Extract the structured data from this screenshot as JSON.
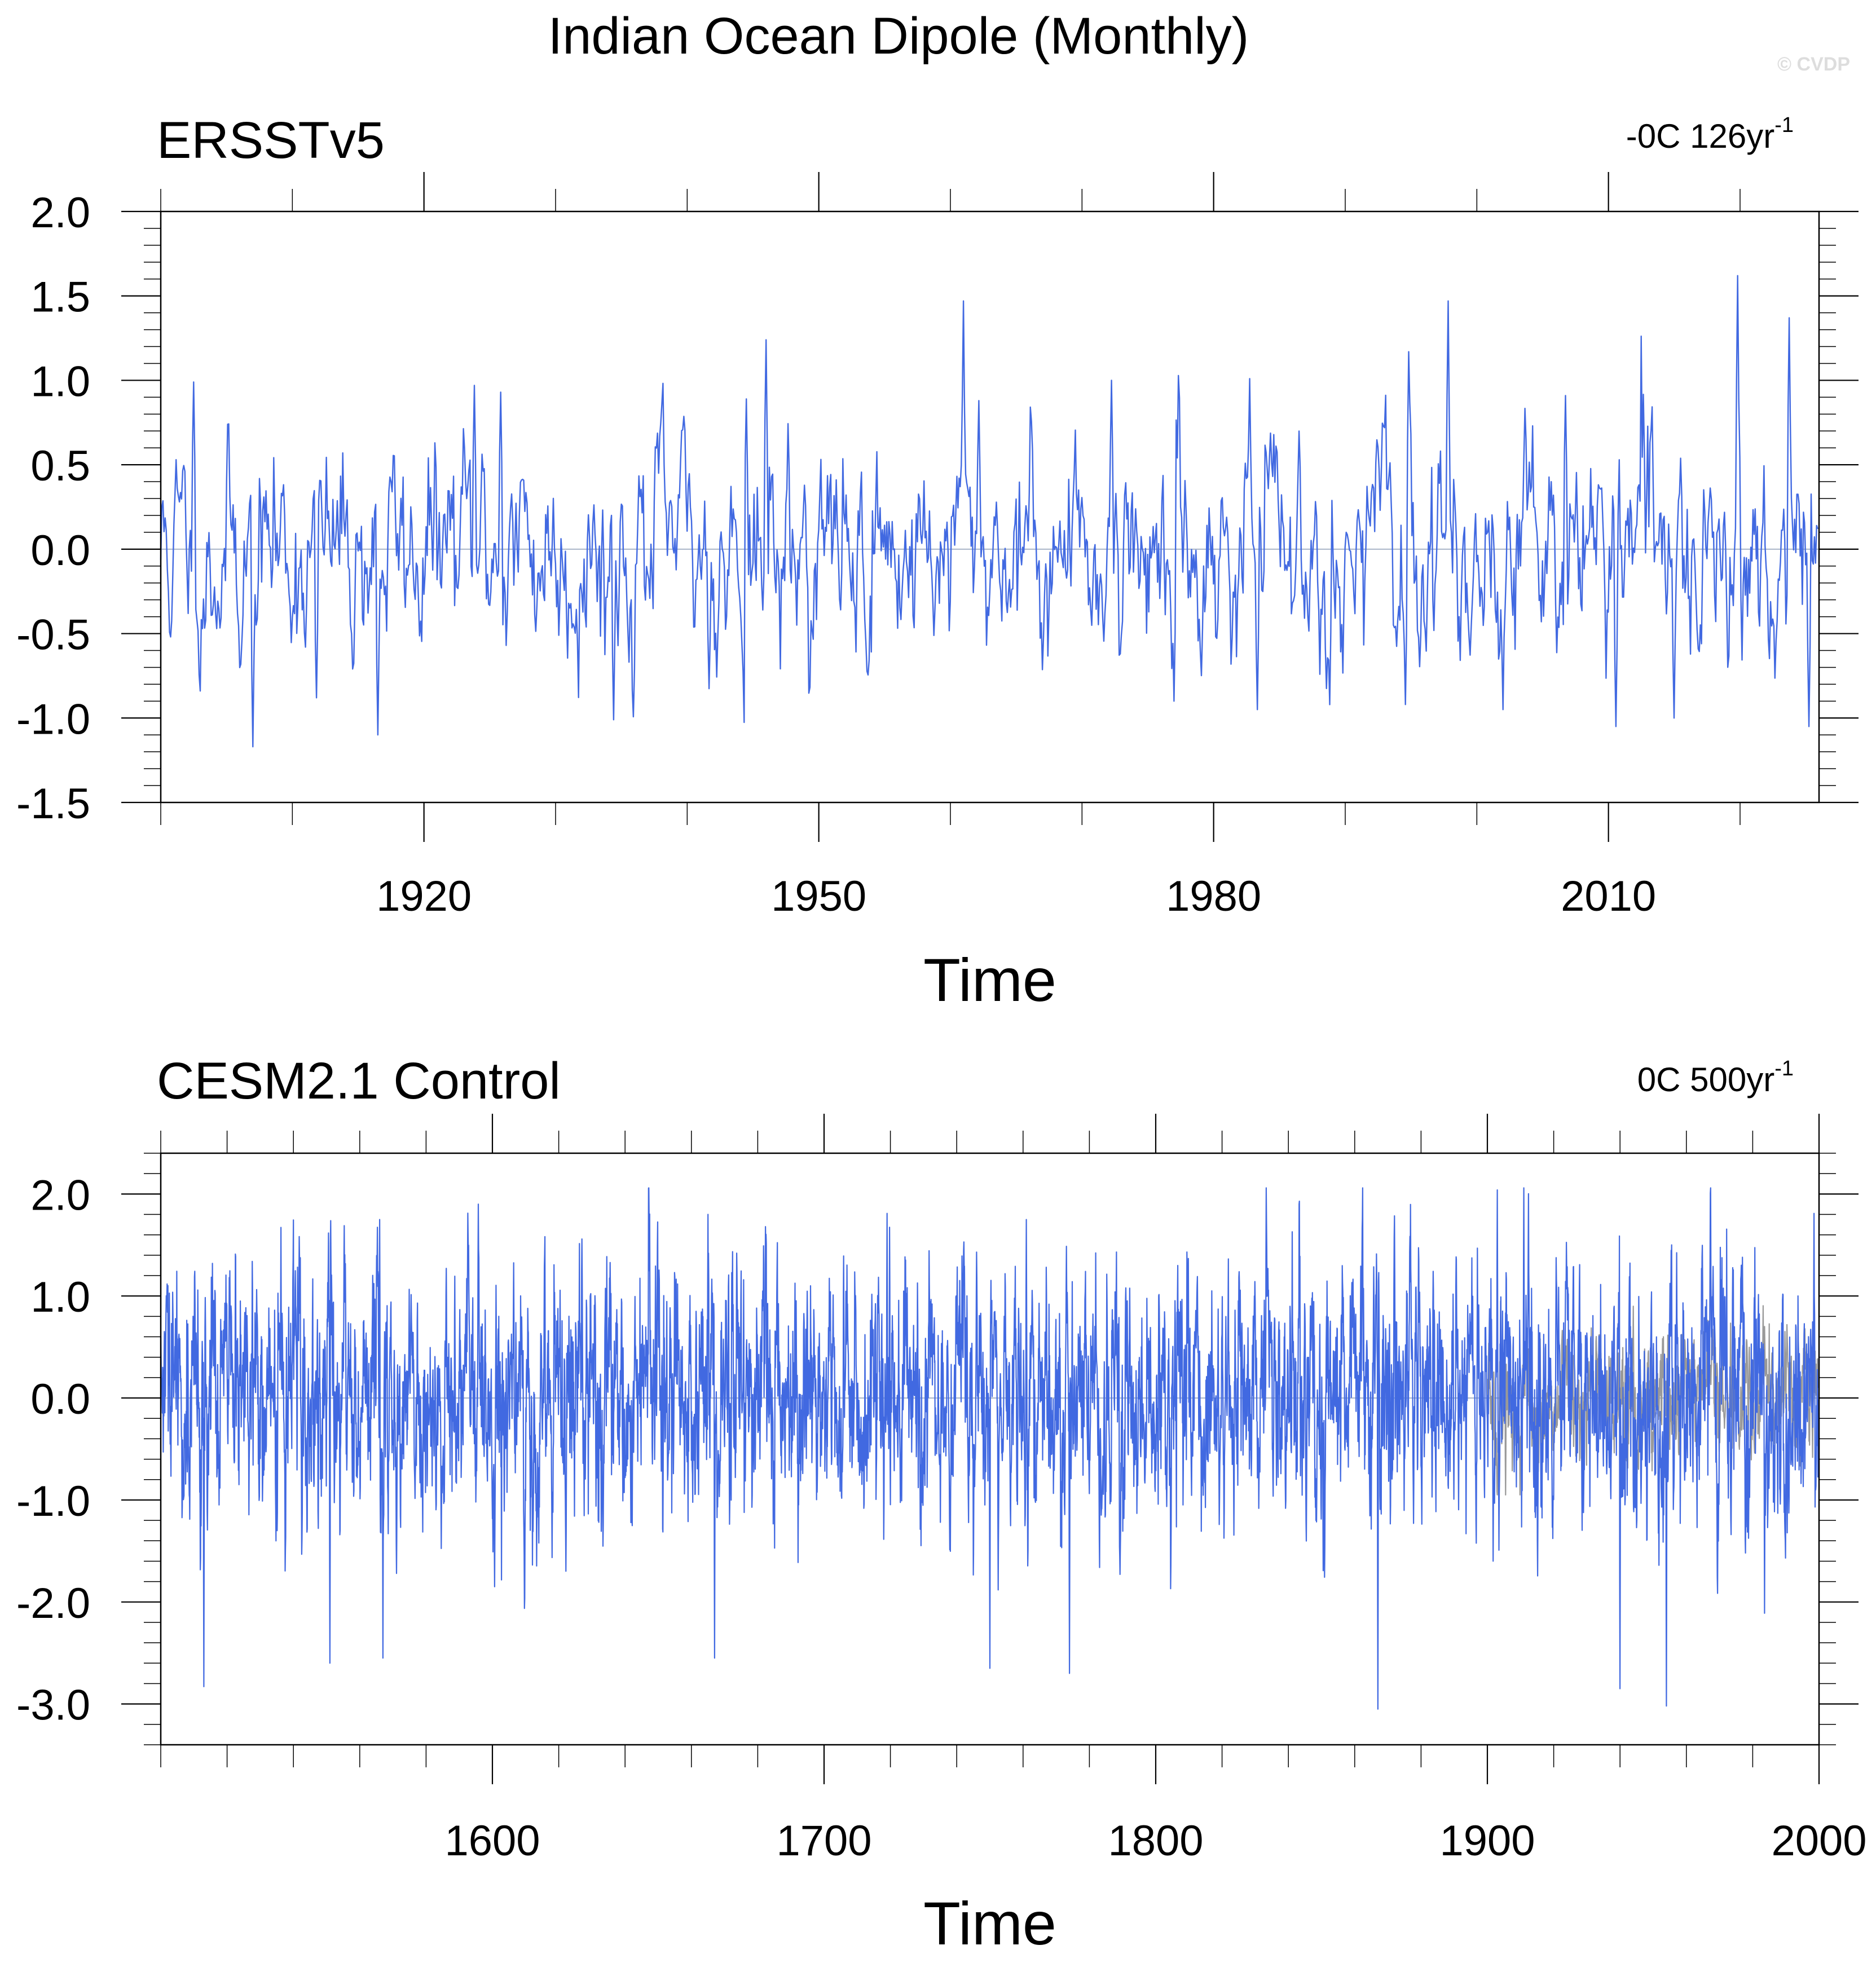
{
  "figure": {
    "title": "Indian Ocean Dipole (Monthly)",
    "watermark": "© CVDP"
  },
  "colors": {
    "series_main": "#4169e1",
    "series_obs_overlay": "#999999",
    "axis": "#000000",
    "zero_line": "#aab4c8"
  },
  "chart_data": [
    {
      "type": "line",
      "panel_title": "ERSSTv5",
      "trend_text": "-0C 126yr",
      "trend_superscript": "-1",
      "xlabel": "Time",
      "ylabel": "",
      "xlim": [
        1900,
        2026
      ],
      "ylim": [
        -1.5,
        2.0
      ],
      "yticks": [
        2.0,
        1.5,
        1.0,
        0.5,
        0.0,
        -0.5,
        -1.0,
        -1.5
      ],
      "ytick_labels": [
        "2.0",
        "1.5",
        "1.0",
        "0.5",
        "0.0",
        "-0.5",
        "-1.0",
        "-1.5"
      ],
      "xticks": [
        1920,
        1950,
        1980,
        2010
      ],
      "xtick_labels": [
        "1920",
        "1950",
        "1980",
        "2010"
      ],
      "x_minor_step": 10,
      "y_minor_step": 0.1,
      "grid": false,
      "zero_reference_line": true,
      "series": [
        {
          "color": "#4169e1",
          "x_start": 1900.0,
          "x_end": 2025.9,
          "monthly": true,
          "num_points": 1512,
          "amplitude_std": 0.33,
          "seed": 11,
          "min": -1.17,
          "max": 1.62,
          "peaks": [
            [
              1902.5,
              0.99
            ],
            [
              1907.0,
              -1.17
            ],
            [
              1911.8,
              -0.88
            ],
            [
              1916.5,
              -1.1
            ],
            [
              1923.8,
              0.97
            ],
            [
              1925.8,
              0.93
            ],
            [
              1934.4,
              -1.01
            ],
            [
              1944.5,
              0.89
            ],
            [
              1946.0,
              1.24
            ],
            [
              1961.0,
              1.47
            ],
            [
              1962.2,
              0.88
            ],
            [
              1972.2,
              1.0
            ],
            [
              1977.0,
              -0.9
            ],
            [
              1982.7,
              1.01
            ],
            [
              1983.3,
              -0.95
            ],
            [
              1994.6,
              -0.92
            ],
            [
              1997.8,
              1.47
            ],
            [
              2002.0,
              -0.95
            ],
            [
              2006.7,
              0.91
            ],
            [
              2010.6,
              -1.05
            ],
            [
              2015.0,
              -1.0
            ],
            [
              2019.8,
              1.62
            ],
            [
              2023.7,
              1.37
            ],
            [
              2025.2,
              -1.05
            ]
          ]
        }
      ]
    },
    {
      "type": "line",
      "panel_title": "CESM2.1 Control",
      "trend_text": "0C 500yr",
      "trend_superscript": "-1",
      "xlabel": "Time",
      "ylabel": "",
      "xlim": [
        1500,
        2000
      ],
      "ylim": [
        -3.4,
        2.4
      ],
      "yticks": [
        2.0,
        1.0,
        0.0,
        -1.0,
        -2.0,
        -3.0
      ],
      "ytick_labels": [
        "2.0",
        "1.0",
        "0.0",
        "-1.0",
        "-2.0",
        "-3.0"
      ],
      "xticks": [
        1600,
        1700,
        1800,
        1900,
        2000
      ],
      "xtick_labels": [
        "1600",
        "1700",
        "1800",
        "1900",
        "2000"
      ],
      "x_minor_step": 20,
      "y_minor_step": 0.2,
      "grid": false,
      "zero_reference_line": true,
      "series": [
        {
          "color": "#999999",
          "x_start": 1900.0,
          "x_end": 1999.9,
          "monthly": true,
          "num_points": 1200,
          "amplitude_std": 0.3,
          "seed": 5,
          "min": -0.95,
          "max": 1.0,
          "peaks": [
            [
              1904.0,
              0.95
            ],
            [
              1944.0,
              0.9
            ],
            [
              1905.5,
              -0.95
            ]
          ]
        },
        {
          "color": "#4169e1",
          "x_start": 1500.0,
          "x_end": 1999.9,
          "monthly": true,
          "num_points": 6000,
          "amplitude_std": 0.62,
          "seed": 29,
          "min": -3.05,
          "max": 2.06,
          "peaks": [
            [
              1513.0,
              -2.83
            ],
            [
              1551.0,
              -2.6
            ],
            [
              1567.0,
              -2.55
            ],
            [
              1566.0,
              1.75
            ],
            [
              1665.0,
              1.8
            ],
            [
              1667.0,
              -2.55
            ],
            [
              1719.0,
              1.81
            ],
            [
              1750.0,
              -2.65
            ],
            [
              1761.0,
              1.75
            ],
            [
              1774.0,
              -2.7
            ],
            [
              1867.0,
              -3.05
            ],
            [
              1903.0,
              2.04
            ],
            [
              1911.0,
              2.06
            ],
            [
              1940.0,
              -2.85
            ],
            [
              1954.0,
              -3.02
            ],
            [
              1998.5,
              1.81
            ]
          ]
        }
      ]
    }
  ]
}
